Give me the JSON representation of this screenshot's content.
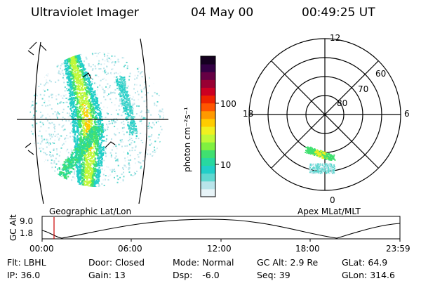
{
  "header": {
    "title": "Ultraviolet Imager",
    "date": "04 May 00",
    "time": "00:49:25 UT"
  },
  "colorbar": {
    "label": "photon cm⁻²s⁻¹",
    "ticks": [
      "100",
      "10"
    ],
    "colors": [
      "#e8f4f8",
      "#b8e4ea",
      "#60d8d0",
      "#22cfc8",
      "#28d8a0",
      "#40e070",
      "#80f040",
      "#c0f838",
      "#f0f020",
      "#ffcc00",
      "#ff9900",
      "#ff5500",
      "#ee2200",
      "#cc0022",
      "#990033",
      "#660044",
      "#330044",
      "#150020"
    ]
  },
  "left_panel": {
    "caption": "Geographic Lat/Lon"
  },
  "polar": {
    "caption": "Apex MLat/MLT",
    "mlt_labels": {
      "top": "12",
      "bottom": "0",
      "left": "18",
      "right": "6"
    },
    "lat_labels": [
      "80",
      "70",
      "60"
    ]
  },
  "altitude_strip": {
    "axis_label": "GC Alt",
    "y_ticks": [
      "9.0",
      "1.8"
    ],
    "x_ticks": [
      "00:00",
      "06:00",
      "12:00",
      "18:00",
      "23:59"
    ],
    "cursor_color": "#cc0000"
  },
  "info": {
    "row1": [
      {
        "key": "Flt:",
        "value": "LBHL"
      },
      {
        "key": "Door:",
        "value": "Closed"
      },
      {
        "key": "Mode:",
        "value": "Normal"
      },
      {
        "key": "GC Alt:",
        "value": "2.9 Re"
      },
      {
        "key": "GLat:",
        "value": "64.9"
      }
    ],
    "row2": [
      {
        "key": "IP:",
        "value": "36.0"
      },
      {
        "key": "Gain:",
        "value": "13"
      },
      {
        "key": "Dsp:",
        "value": "-6.0"
      },
      {
        "key": "Seq:",
        "value": "39"
      },
      {
        "key": "GLon:",
        "value": "314.6"
      }
    ]
  }
}
